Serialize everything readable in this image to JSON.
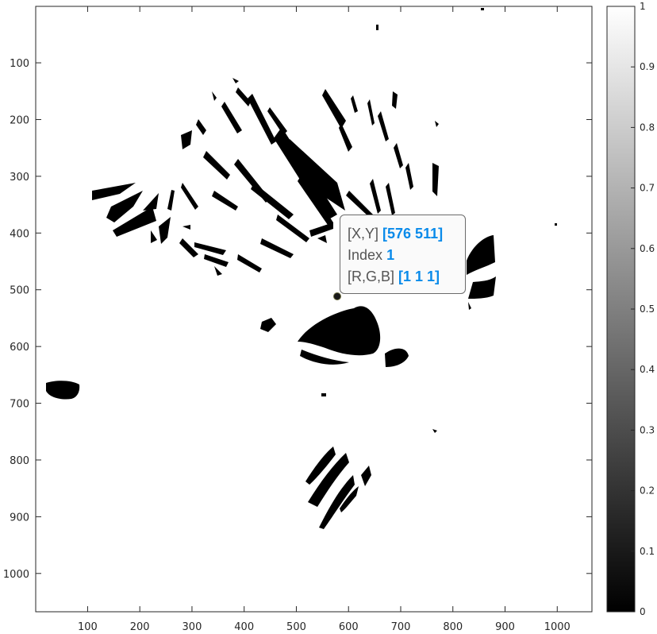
{
  "chart_data": {
    "type": "heatmap",
    "title": "",
    "xlabel": "",
    "ylabel": "",
    "xlim": [
      1,
      1066
    ],
    "ylim": [
      1,
      1067
    ],
    "y_direction": "reverse",
    "colormap": "gray",
    "x_ticks": [
      100,
      200,
      300,
      400,
      500,
      600,
      700,
      800,
      900,
      1000
    ],
    "y_ticks": [
      100,
      200,
      300,
      400,
      500,
      600,
      700,
      800,
      900,
      1000
    ],
    "colorbar": {
      "limits": [
        0,
        1
      ],
      "ticks": [
        "0",
        "0.1",
        "0.2",
        "0.3",
        "0.4",
        "0.5",
        "0.6",
        "0.7",
        "0.8",
        "0.9",
        "1"
      ]
    },
    "datatip": {
      "x": 576,
      "y": 511,
      "xy_label": "[X,Y]",
      "xy_value": "[576 511]",
      "index_label": "Index",
      "index_value": "1",
      "rgb_label": "[R,G,B]",
      "rgb_value": "[1 1 1]"
    }
  },
  "colors": {
    "background": "#ffffff",
    "mask": "#000000",
    "datatip_value": "#0a8bea",
    "axis": "#262626"
  }
}
